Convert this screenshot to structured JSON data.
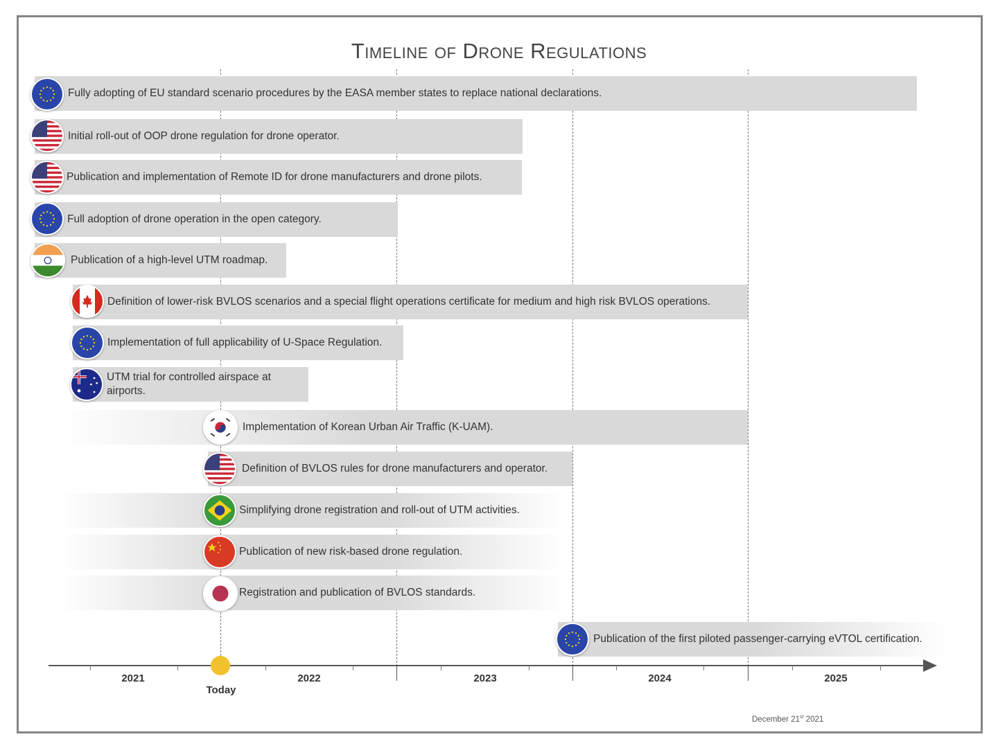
{
  "title": "Timeline of Drone Regulations",
  "events": [
    {
      "region": "EU",
      "text": "Fully adopting of EU standard scenario procedures by the EASA member states to replace national declarations."
    },
    {
      "region": "USA",
      "text": "Initial roll-out of OOP drone regulation for drone operator."
    },
    {
      "region": "USA",
      "text": "Publication and implementation of Remote ID for drone manufacturers and drone pilots."
    },
    {
      "region": "EU",
      "text": "Full adoption of drone operation in the open category."
    },
    {
      "region": "India",
      "text": "Publication of a high-level UTM roadmap."
    },
    {
      "region": "Canada",
      "text": "Definition of lower-risk BVLOS scenarios and a special flight operations certificate for medium and high risk BVLOS operations."
    },
    {
      "region": "EU",
      "text": "Implementation of full applicability of U-Space Regulation."
    },
    {
      "region": "Australia",
      "text": "UTM trial for controlled airspace at airports."
    },
    {
      "region": "South Korea",
      "text": "Implementation of Korean Urban Air Traffic (K-UAM)."
    },
    {
      "region": "USA",
      "text": "Definition of BVLOS rules for drone manufacturers and operator."
    },
    {
      "region": "Brazil",
      "text": "Simplifying drone registration and roll-out of UTM activities."
    },
    {
      "region": "China",
      "text": "Publication of new risk-based drone regulation."
    },
    {
      "region": "Japan",
      "text": "Registration and publication of BVLOS standards."
    },
    {
      "region": "EU",
      "text": "Publication of the first piloted passenger-carrying eVTOL certification."
    }
  ],
  "axis": {
    "years": [
      "2021",
      "2022",
      "2023",
      "2024",
      "2025"
    ],
    "today_label": "Today",
    "today_color": "#f2c12e"
  },
  "date": {
    "prefix": "December 21",
    "suffix": "st",
    "year": " 2021"
  }
}
